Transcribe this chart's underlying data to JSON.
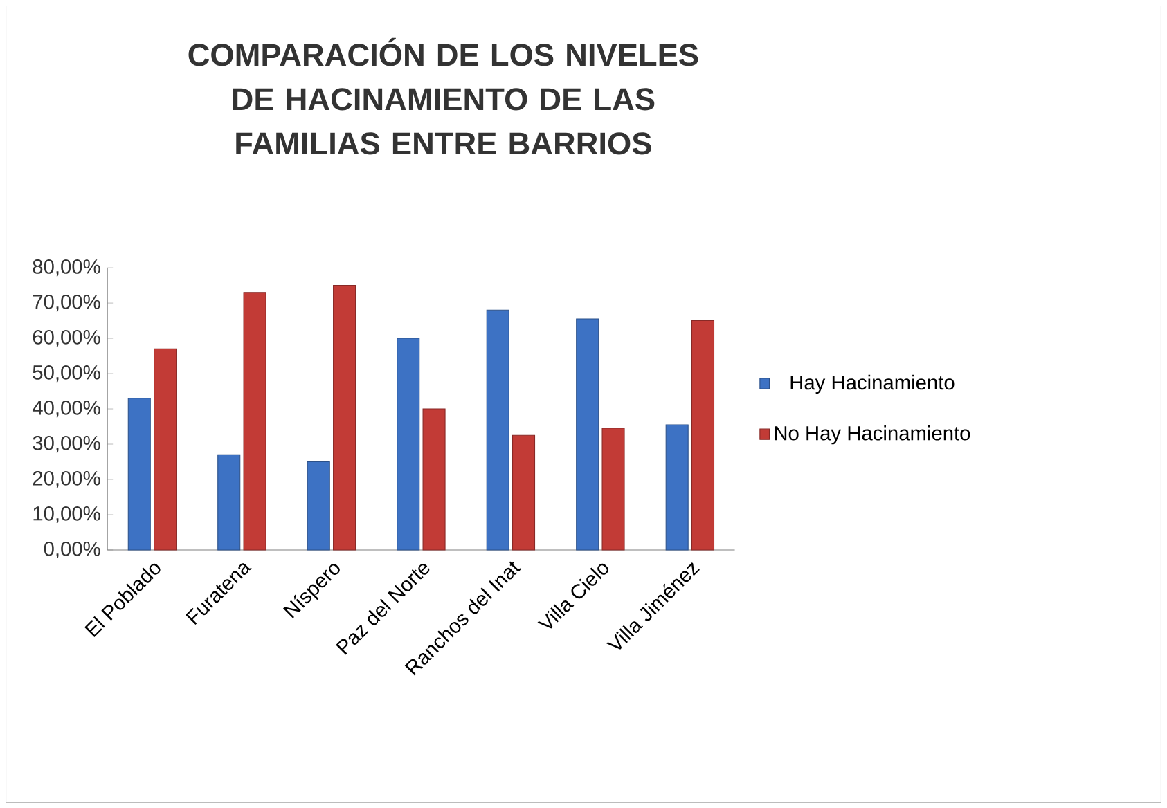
{
  "chart_data": {
    "type": "bar",
    "title": "COMPARACIÓN DE LOS NIVELES DE HACINAMIENTO DE LAS FAMILIAS ENTRE BARRIOS",
    "categories": [
      "El Poblado",
      "Furatena",
      "Níspero",
      "Paz del Norte",
      "Ranchos del Inat",
      "Villa Cielo",
      "Villa Jiménez"
    ],
    "series": [
      {
        "name": "Hay Hacinamiento",
        "color": "#3d72c4",
        "values": [
          43,
          27,
          25,
          60,
          68,
          65.5,
          35.5
        ]
      },
      {
        "name": "No Hay Hacinamiento",
        "color": "#c23b36",
        "values": [
          57,
          73,
          75,
          40,
          32.5,
          34.5,
          65
        ]
      }
    ],
    "ylim": [
      0,
      80
    ],
    "yticks": [
      {
        "value": 0,
        "label": "0,00%"
      },
      {
        "value": 10,
        "label": "10,00%"
      },
      {
        "value": 20,
        "label": "20,00%"
      },
      {
        "value": 30,
        "label": "30,00%"
      },
      {
        "value": 40,
        "label": "40,00%"
      },
      {
        "value": 50,
        "label": "50,00%"
      },
      {
        "value": 60,
        "label": "60,00%"
      },
      {
        "value": 70,
        "label": "70,00%"
      },
      {
        "value": 80,
        "label": "80,00%"
      }
    ],
    "grid": false,
    "legend": "right"
  }
}
